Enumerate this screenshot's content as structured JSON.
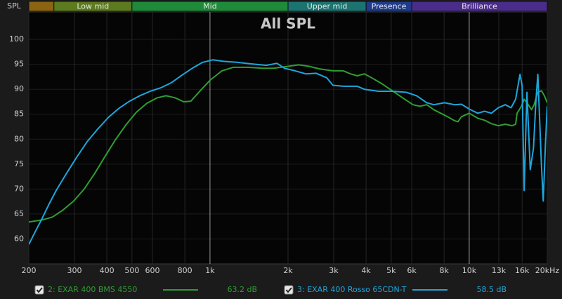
{
  "chart_data": {
    "type": "line",
    "title": "All SPL",
    "y_label": "SPL",
    "log_x": true,
    "grid": true,
    "xlim": [
      200,
      20000
    ],
    "ylim": [
      55,
      105.5
    ],
    "xticks": [
      200,
      300,
      400,
      500,
      600,
      800,
      {
        "value": 1000,
        "label": "1k"
      },
      {
        "value": 2000,
        "label": "2k"
      },
      {
        "value": 3000,
        "label": "3k"
      },
      {
        "value": 4000,
        "label": "4k"
      },
      {
        "value": 5000,
        "label": "5k"
      },
      {
        "value": 6000,
        "label": "6k"
      },
      {
        "value": 8000,
        "label": "8k"
      },
      {
        "value": 10000,
        "label": "10k"
      },
      {
        "value": 13000,
        "label": "13k"
      },
      {
        "value": 16000,
        "label": "16k"
      },
      {
        "value": 20000,
        "label": "20kHz"
      }
    ],
    "yticks": [
      60,
      65,
      70,
      75,
      80,
      85,
      90,
      95,
      100
    ],
    "bands": {
      "labels": [
        null,
        "Low mid",
        "Mid",
        "Upper mid",
        "Presence",
        "Brilliance"
      ],
      "edges": [
        250,
        500,
        2000,
        4000,
        6000
      ],
      "colors": [
        "#8a6410",
        "#5c7a1e",
        "#1f8a3a",
        "#1c7470",
        "#1f3c8c",
        "#4a2c8a"
      ]
    },
    "series": [
      {
        "name": "2: EXAR 400 BMS 4550",
        "color": "#2e9e32",
        "level": 63.2,
        "level_label": "63.2 dB",
        "x": [
          200,
          225,
          247,
          271,
          298,
          327,
          359,
          393,
          432,
          473,
          520,
          571,
          626,
          677,
          733,
          792,
          843,
          917,
          1000,
          1112,
          1228,
          1400,
          1600,
          1754,
          2000,
          2197,
          2413,
          2630,
          2800,
          2979,
          3270,
          3480,
          3700,
          3940,
          4200,
          4610,
          5050,
          5530,
          6070,
          6450,
          6860,
          7300,
          7760,
          8250,
          8780,
          9050,
          9330,
          10000,
          10780,
          11460,
          12180,
          12950,
          13770,
          14640,
          15100,
          15300,
          15900,
          16290,
          16700,
          17400,
          17800,
          18400,
          19000,
          19500,
          20000
        ],
        "values": [
          63.4,
          63.8,
          64.4,
          65.8,
          67.6,
          70.0,
          73.1,
          76.5,
          79.9,
          82.8,
          85.4,
          87.2,
          88.3,
          88.7,
          88.3,
          87.5,
          87.6,
          89.7,
          91.8,
          93.7,
          94.4,
          94.4,
          94.2,
          94.2,
          94.6,
          94.9,
          94.6,
          94.1,
          93.9,
          93.7,
          93.7,
          93.1,
          92.7,
          93.1,
          92.3,
          91.1,
          89.7,
          88.3,
          86.9,
          86.6,
          86.9,
          85.9,
          85.2,
          84.5,
          83.7,
          83.5,
          84.5,
          85.2,
          84.2,
          83.8,
          83.1,
          82.7,
          83.0,
          82.7,
          83.0,
          85.2,
          86.6,
          88.0,
          87.3,
          85.9,
          86.9,
          89.4,
          89.7,
          88.7,
          87.3
        ]
      },
      {
        "name": "3: EXAR 400 Rosso 65CDN-T",
        "color": "#1ea6dc",
        "level": 58.5,
        "level_label": "58.5 dB",
        "x": [
          200,
          211,
          225,
          239,
          255,
          280,
          307,
          337,
          370,
          406,
          446,
          489,
          536,
          588,
          646,
          709,
          778,
          854,
          937,
          1028,
          1128,
          1270,
          1430,
          1650,
          1812,
          1940,
          2130,
          2340,
          2570,
          2820,
          2979,
          3270,
          3700,
          3940,
          4460,
          5050,
          5720,
          6270,
          6860,
          7300,
          8030,
          8780,
          9330,
          10030,
          10780,
          11460,
          12180,
          12950,
          13770,
          14500,
          15100,
          15700,
          16000,
          16290,
          16700,
          17200,
          17700,
          18100,
          18400,
          19000,
          19300,
          19700,
          20000
        ],
        "values": [
          58.9,
          61.3,
          64.1,
          66.9,
          69.7,
          73.2,
          76.5,
          79.6,
          82.1,
          84.4,
          86.2,
          87.6,
          88.7,
          89.6,
          90.3,
          91.3,
          92.8,
          94.2,
          95.4,
          95.9,
          95.6,
          95.4,
          95.1,
          94.8,
          95.2,
          94.2,
          93.7,
          93.1,
          93.2,
          92.3,
          90.8,
          90.6,
          90.6,
          90.0,
          89.6,
          89.6,
          89.4,
          88.7,
          87.3,
          86.9,
          87.3,
          86.9,
          87.0,
          86.0,
          85.2,
          85.6,
          85.2,
          86.3,
          86.9,
          86.3,
          88.0,
          93.0,
          90.8,
          69.7,
          89.4,
          73.9,
          78.2,
          88.0,
          93.0,
          74.6,
          67.6,
          79.6,
          86.6
        ]
      }
    ]
  }
}
